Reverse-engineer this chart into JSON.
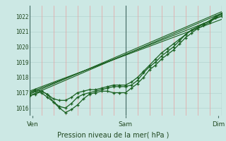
{
  "title": "Pression niveau de la mer( hPa )",
  "bg_color": "#cce8e4",
  "grid_color_h": "#b8d8d4",
  "grid_color_v": "#e8a0a0",
  "line_color": "#1a6020",
  "vline_color": "#406860",
  "tick_label_color": "#204820",
  "ylim": [
    1015.5,
    1022.7
  ],
  "yticks": [
    1016,
    1017,
    1018,
    1019,
    1020,
    1021,
    1022
  ],
  "xlim": [
    0,
    32
  ],
  "xtick_positions": [
    0.5,
    16,
    31.5
  ],
  "xtick_labels": [
    "Ven",
    "Sam",
    "Dim"
  ],
  "vline_positions": [
    16,
    32
  ],
  "straight_lines": [
    {
      "x": [
        0,
        32
      ],
      "y": [
        1016.8,
        1022.2
      ]
    },
    {
      "x": [
        0,
        32
      ],
      "y": [
        1017.0,
        1022.0
      ]
    },
    {
      "x": [
        0,
        32
      ],
      "y": [
        1017.1,
        1021.8
      ]
    },
    {
      "x": [
        0,
        32
      ],
      "y": [
        1016.9,
        1022.3
      ]
    }
  ],
  "series1_x": [
    0,
    1,
    2,
    3,
    4,
    5,
    6,
    7,
    8,
    9,
    10,
    11,
    12,
    13,
    14,
    15,
    16,
    17,
    18,
    19,
    20,
    21,
    22,
    23,
    24,
    25,
    26,
    27,
    28,
    29,
    30,
    31,
    32
  ],
  "series1_y": [
    1016.8,
    1016.9,
    1017.1,
    1016.9,
    1016.4,
    1016.0,
    1015.7,
    1015.9,
    1016.2,
    1016.6,
    1016.9,
    1017.0,
    1017.1,
    1017.1,
    1017.0,
    1017.0,
    1017.0,
    1017.3,
    1017.6,
    1018.0,
    1018.5,
    1018.8,
    1019.2,
    1019.5,
    1019.8,
    1020.2,
    1020.6,
    1020.9,
    1021.2,
    1021.4,
    1021.6,
    1021.9,
    1022.2
  ],
  "series2_x": [
    0,
    1,
    2,
    3,
    4,
    5,
    6,
    7,
    8,
    9,
    10,
    11,
    12,
    13,
    14,
    15,
    16,
    17,
    18,
    19,
    20,
    21,
    22,
    23,
    24,
    25,
    26,
    27,
    28,
    29,
    30,
    31,
    32
  ],
  "series2_y": [
    1016.9,
    1017.1,
    1017.0,
    1016.7,
    1016.4,
    1016.1,
    1016.0,
    1016.3,
    1016.7,
    1016.9,
    1017.0,
    1017.1,
    1017.2,
    1017.3,
    1017.4,
    1017.4,
    1017.4,
    1017.5,
    1017.8,
    1018.3,
    1018.7,
    1019.0,
    1019.4,
    1019.7,
    1020.0,
    1020.4,
    1020.8,
    1021.1,
    1021.3,
    1021.5,
    1021.7,
    1022.0,
    1022.1
  ],
  "series3_x": [
    0,
    1,
    2,
    3,
    4,
    5,
    6,
    7,
    8,
    9,
    10,
    11,
    12,
    13,
    14,
    15,
    16,
    17,
    18,
    19,
    20,
    21,
    22,
    23,
    24,
    25,
    26,
    27,
    28,
    29,
    30,
    31,
    32
  ],
  "series3_y": [
    1017.0,
    1017.2,
    1017.1,
    1016.9,
    1016.6,
    1016.5,
    1016.5,
    1016.7,
    1017.0,
    1017.1,
    1017.2,
    1017.2,
    1017.3,
    1017.4,
    1017.5,
    1017.5,
    1017.5,
    1017.7,
    1018.0,
    1018.4,
    1018.8,
    1019.2,
    1019.6,
    1019.9,
    1020.2,
    1020.5,
    1020.8,
    1021.1,
    1021.3,
    1021.5,
    1021.7,
    1021.9,
    1022.0
  ]
}
